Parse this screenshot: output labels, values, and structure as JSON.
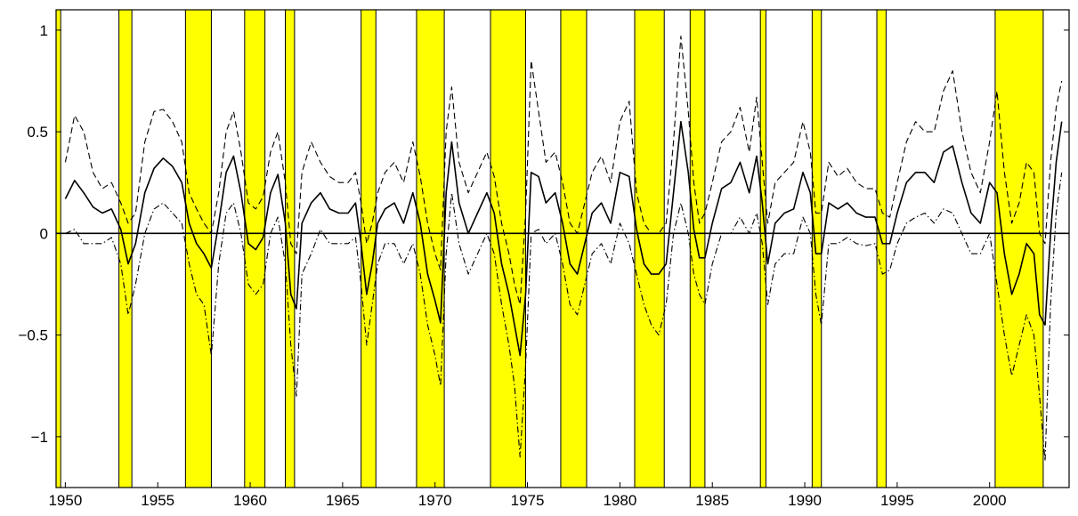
{
  "chart_data": {
    "type": "line",
    "title": "",
    "xlabel": "",
    "ylabel": "",
    "xlim": [
      1949.5,
      2004.3
    ],
    "ylim": [
      -1.25,
      1.1
    ],
    "grid": false,
    "legend": "none",
    "x_ticks": [
      1950,
      1955,
      1960,
      1965,
      1970,
      1975,
      1980,
      1985,
      1990,
      1995,
      2000
    ],
    "x_tick_labels": [
      "1950",
      "1955",
      "1960",
      "1965",
      "1970",
      "1975",
      "1980",
      "1985",
      "1990",
      "1995",
      "2000"
    ],
    "y_ticks": [
      -1,
      -0.5,
      0,
      0.5,
      1
    ],
    "y_tick_labels": [
      "−1",
      "−0.5",
      "0",
      "0.5",
      "1"
    ],
    "zero_line": 0,
    "shaded_intervals": [
      [
        1949.5,
        1949.75
      ],
      [
        1952.9,
        1953.6
      ],
      [
        1956.5,
        1957.9
      ],
      [
        1959.7,
        1960.8
      ],
      [
        1961.9,
        1962.4
      ],
      [
        1966.0,
        1966.8
      ],
      [
        1969.0,
        1970.5
      ],
      [
        1973.0,
        1974.9
      ],
      [
        1976.8,
        1978.2
      ],
      [
        1980.8,
        1982.4
      ],
      [
        1983.8,
        1984.6
      ],
      [
        1987.6,
        1987.9
      ],
      [
        1990.4,
        1990.9
      ],
      [
        1993.9,
        1994.4
      ],
      [
        2000.3,
        2002.9
      ]
    ],
    "series": [
      {
        "style": "solid",
        "x": [
          1950.0,
          1950.5,
          1951.0,
          1951.5,
          1952.0,
          1952.5,
          1953.0,
          1953.4,
          1953.8,
          1954.3,
          1954.8,
          1955.3,
          1955.8,
          1956.3,
          1956.7,
          1957.1,
          1957.5,
          1957.9,
          1958.3,
          1958.7,
          1959.1,
          1959.5,
          1959.9,
          1960.3,
          1960.7,
          1961.1,
          1961.5,
          1961.9,
          1962.2,
          1962.5,
          1962.8,
          1963.3,
          1963.8,
          1964.3,
          1964.8,
          1965.3,
          1965.7,
          1966.0,
          1966.3,
          1966.6,
          1966.9,
          1967.3,
          1967.8,
          1968.3,
          1968.8,
          1969.2,
          1969.6,
          1970.0,
          1970.3,
          1970.6,
          1970.9,
          1971.3,
          1971.8,
          1972.3,
          1972.8,
          1973.2,
          1973.6,
          1974.0,
          1974.3,
          1974.6,
          1974.9,
          1975.2,
          1975.6,
          1976.0,
          1976.5,
          1976.9,
          1977.3,
          1977.7,
          1978.1,
          1978.5,
          1979.0,
          1979.5,
          1980.0,
          1980.5,
          1980.9,
          1981.3,
          1981.7,
          1982.1,
          1982.5,
          1982.9,
          1983.3,
          1983.7,
          1984.0,
          1984.3,
          1984.6,
          1985.0,
          1985.5,
          1986.0,
          1986.5,
          1987.0,
          1987.4,
          1987.7,
          1988.0,
          1988.4,
          1988.9,
          1989.4,
          1989.9,
          1990.3,
          1990.6,
          1990.9,
          1991.3,
          1991.8,
          1992.3,
          1992.8,
          1993.3,
          1993.8,
          1994.2,
          1994.6,
          1995.0,
          1995.5,
          1996.0,
          1996.5,
          1997.0,
          1997.5,
          1998.0,
          1998.5,
          1999.0,
          1999.5,
          2000.0,
          2000.4,
          2000.8,
          2001.2,
          2001.6,
          2002.0,
          2002.4,
          2002.7,
          2003.0,
          2003.3,
          2003.6,
          2003.9
        ],
        "y": [
          0.17,
          0.26,
          0.2,
          0.13,
          0.1,
          0.12,
          0.02,
          -0.15,
          -0.05,
          0.2,
          0.32,
          0.37,
          0.33,
          0.25,
          0.05,
          -0.05,
          -0.1,
          -0.17,
          0.05,
          0.3,
          0.38,
          0.2,
          -0.05,
          -0.08,
          -0.02,
          0.2,
          0.29,
          0.05,
          -0.3,
          -0.37,
          0.05,
          0.15,
          0.2,
          0.12,
          0.1,
          0.1,
          0.15,
          -0.05,
          -0.3,
          -0.15,
          0.05,
          0.12,
          0.15,
          0.05,
          0.2,
          0.05,
          -0.2,
          -0.33,
          -0.44,
          0.2,
          0.45,
          0.15,
          0.0,
          0.1,
          0.2,
          0.1,
          -0.15,
          -0.3,
          -0.45,
          -0.6,
          -0.3,
          0.3,
          0.28,
          0.15,
          0.2,
          0.05,
          -0.15,
          -0.2,
          -0.05,
          0.1,
          0.15,
          0.05,
          0.3,
          0.28,
          0.02,
          -0.15,
          -0.2,
          -0.2,
          -0.15,
          0.2,
          0.55,
          0.3,
          0.02,
          -0.12,
          -0.12,
          0.05,
          0.22,
          0.25,
          0.35,
          0.2,
          0.38,
          0.15,
          -0.15,
          0.05,
          0.1,
          0.12,
          0.3,
          0.2,
          -0.1,
          -0.1,
          0.15,
          0.12,
          0.15,
          0.1,
          0.08,
          0.08,
          -0.05,
          -0.05,
          0.1,
          0.25,
          0.3,
          0.3,
          0.25,
          0.4,
          0.43,
          0.25,
          0.1,
          0.05,
          0.25,
          0.2,
          -0.1,
          -0.3,
          -0.2,
          -0.05,
          -0.1,
          -0.4,
          -0.45,
          0.0,
          0.35,
          0.55
        ]
      },
      {
        "style": "dashed",
        "x": [
          1950.0,
          1950.5,
          1951.0,
          1951.5,
          1952.0,
          1952.5,
          1953.0,
          1953.4,
          1953.8,
          1954.3,
          1954.8,
          1955.3,
          1955.8,
          1956.3,
          1956.7,
          1957.1,
          1957.5,
          1957.9,
          1958.3,
          1958.7,
          1959.1,
          1959.5,
          1959.9,
          1960.3,
          1960.7,
          1961.1,
          1961.5,
          1961.9,
          1962.2,
          1962.5,
          1962.8,
          1963.3,
          1963.8,
          1964.3,
          1964.8,
          1965.3,
          1965.7,
          1966.0,
          1966.3,
          1966.6,
          1966.9,
          1967.3,
          1967.8,
          1968.3,
          1968.8,
          1969.2,
          1969.6,
          1970.0,
          1970.3,
          1970.6,
          1970.9,
          1971.3,
          1971.8,
          1972.3,
          1972.8,
          1973.2,
          1973.6,
          1974.0,
          1974.3,
          1974.6,
          1974.9,
          1975.2,
          1975.6,
          1976.0,
          1976.5,
          1976.9,
          1977.3,
          1977.7,
          1978.1,
          1978.5,
          1979.0,
          1979.5,
          1980.0,
          1980.5,
          1980.9,
          1981.3,
          1981.7,
          1982.1,
          1982.5,
          1982.9,
          1983.3,
          1983.7,
          1984.0,
          1984.3,
          1984.6,
          1985.0,
          1985.5,
          1986.0,
          1986.5,
          1987.0,
          1987.4,
          1987.7,
          1988.0,
          1988.4,
          1988.9,
          1989.4,
          1989.9,
          1990.3,
          1990.6,
          1990.9,
          1991.3,
          1991.8,
          1992.3,
          1992.8,
          1993.3,
          1993.8,
          1994.2,
          1994.6,
          1995.0,
          1995.5,
          1996.0,
          1996.5,
          1997.0,
          1997.5,
          1998.0,
          1998.5,
          1999.0,
          1999.5,
          2000.0,
          2000.4,
          2000.8,
          2001.2,
          2001.6,
          2002.0,
          2002.4,
          2002.7,
          2003.0,
          2003.3,
          2003.6,
          2003.9
        ],
        "y": [
          0.35,
          0.58,
          0.5,
          0.3,
          0.22,
          0.25,
          0.15,
          0.05,
          0.1,
          0.45,
          0.6,
          0.61,
          0.55,
          0.45,
          0.2,
          0.12,
          0.05,
          0.0,
          0.2,
          0.5,
          0.6,
          0.4,
          0.15,
          0.12,
          0.18,
          0.4,
          0.5,
          0.25,
          -0.05,
          -0.1,
          0.3,
          0.45,
          0.35,
          0.28,
          0.25,
          0.25,
          0.3,
          0.15,
          -0.05,
          0.05,
          0.2,
          0.3,
          0.35,
          0.25,
          0.45,
          0.28,
          0.05,
          -0.1,
          -0.18,
          0.5,
          0.72,
          0.35,
          0.2,
          0.3,
          0.4,
          0.28,
          0.05,
          -0.1,
          -0.25,
          -0.35,
          0.1,
          0.85,
          0.6,
          0.35,
          0.4,
          0.25,
          0.05,
          0.0,
          0.15,
          0.3,
          0.38,
          0.25,
          0.55,
          0.65,
          0.2,
          0.05,
          0.0,
          0.0,
          0.05,
          0.45,
          0.97,
          0.6,
          0.25,
          0.05,
          0.1,
          0.25,
          0.45,
          0.5,
          0.62,
          0.4,
          0.67,
          0.35,
          0.05,
          0.25,
          0.3,
          0.35,
          0.55,
          0.4,
          0.1,
          0.1,
          0.35,
          0.28,
          0.32,
          0.25,
          0.22,
          0.22,
          0.1,
          0.08,
          0.25,
          0.45,
          0.55,
          0.5,
          0.5,
          0.7,
          0.8,
          0.5,
          0.3,
          0.2,
          0.45,
          0.7,
          0.3,
          0.05,
          0.15,
          0.35,
          0.3,
          0.0,
          -0.05,
          0.35,
          0.62,
          0.75
        ]
      },
      {
        "style": "dash-dot",
        "x": [
          1950.0,
          1950.5,
          1951.0,
          1951.5,
          1952.0,
          1952.5,
          1953.0,
          1953.4,
          1953.8,
          1954.3,
          1954.8,
          1955.3,
          1955.8,
          1956.3,
          1956.7,
          1957.1,
          1957.5,
          1957.9,
          1958.3,
          1958.7,
          1959.1,
          1959.5,
          1959.9,
          1960.3,
          1960.7,
          1961.1,
          1961.5,
          1961.9,
          1962.2,
          1962.5,
          1962.8,
          1963.3,
          1963.8,
          1964.3,
          1964.8,
          1965.3,
          1965.7,
          1966.0,
          1966.3,
          1966.6,
          1966.9,
          1967.3,
          1967.8,
          1968.3,
          1968.8,
          1969.2,
          1969.6,
          1970.0,
          1970.3,
          1970.6,
          1970.9,
          1971.3,
          1971.8,
          1972.3,
          1972.8,
          1973.2,
          1973.6,
          1974.0,
          1974.3,
          1974.6,
          1974.9,
          1975.2,
          1975.6,
          1976.0,
          1976.5,
          1976.9,
          1977.3,
          1977.7,
          1978.1,
          1978.5,
          1979.0,
          1979.5,
          1980.0,
          1980.5,
          1980.9,
          1981.3,
          1981.7,
          1982.1,
          1982.5,
          1982.9,
          1983.3,
          1983.7,
          1984.0,
          1984.3,
          1984.6,
          1985.0,
          1985.5,
          1986.0,
          1986.5,
          1987.0,
          1987.4,
          1987.7,
          1988.0,
          1988.4,
          1988.9,
          1989.4,
          1989.9,
          1990.3,
          1990.6,
          1990.9,
          1991.3,
          1991.8,
          1992.3,
          1992.8,
          1993.3,
          1993.8,
          1994.2,
          1994.6,
          1995.0,
          1995.5,
          1996.0,
          1996.5,
          1997.0,
          1997.5,
          1998.0,
          1998.5,
          1999.0,
          1999.5,
          2000.0,
          2000.4,
          2000.8,
          2001.2,
          2001.6,
          2002.0,
          2002.4,
          2002.7,
          2003.0,
          2003.3,
          2003.6,
          2003.9
        ],
        "y": [
          0.0,
          0.02,
          -0.05,
          -0.05,
          -0.05,
          -0.02,
          -0.15,
          -0.4,
          -0.25,
          0.0,
          0.12,
          0.15,
          0.1,
          0.05,
          -0.15,
          -0.3,
          -0.35,
          -0.6,
          -0.15,
          0.1,
          0.15,
          0.0,
          -0.25,
          -0.3,
          -0.25,
          0.0,
          0.08,
          -0.15,
          -0.55,
          -0.8,
          -0.2,
          -0.1,
          0.02,
          -0.05,
          -0.05,
          -0.05,
          -0.02,
          -0.25,
          -0.55,
          -0.35,
          -0.15,
          -0.05,
          -0.05,
          -0.15,
          -0.05,
          -0.2,
          -0.45,
          -0.6,
          -0.75,
          -0.1,
          0.2,
          -0.05,
          -0.2,
          -0.1,
          0.0,
          -0.1,
          -0.35,
          -0.55,
          -0.75,
          -1.1,
          -0.65,
          0.0,
          0.02,
          -0.05,
          0.0,
          -0.15,
          -0.35,
          -0.4,
          -0.25,
          -0.1,
          -0.05,
          -0.15,
          0.05,
          -0.05,
          -0.2,
          -0.35,
          -0.45,
          -0.5,
          -0.35,
          0.0,
          0.15,
          0.0,
          -0.2,
          -0.3,
          -0.35,
          -0.15,
          0.0,
          0.0,
          0.08,
          0.0,
          0.1,
          -0.05,
          -0.35,
          -0.15,
          -0.1,
          -0.1,
          0.08,
          0.0,
          -0.3,
          -0.45,
          -0.05,
          -0.05,
          -0.02,
          -0.05,
          -0.06,
          -0.05,
          -0.2,
          -0.18,
          -0.05,
          0.05,
          0.08,
          0.1,
          0.05,
          0.12,
          0.1,
          0.0,
          -0.1,
          -0.1,
          0.0,
          -0.25,
          -0.5,
          -0.7,
          -0.55,
          -0.4,
          -0.5,
          -0.8,
          -1.12,
          -0.35,
          0.1,
          0.3
        ]
      }
    ]
  },
  "colors": {
    "shade": "#ffff00",
    "line": "#000000",
    "background": "#ffffff"
  }
}
